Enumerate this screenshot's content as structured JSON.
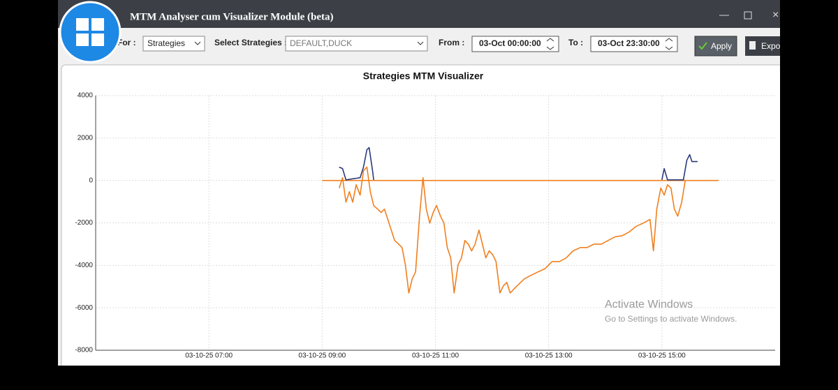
{
  "window": {
    "title": "MTM Analyser cum Visualizer Module (beta)"
  },
  "toolbar": {
    "for_label": "For :",
    "for_value": "Strategies",
    "select_label": "Select Strategies :",
    "select_value": "DEFAULT,DUCK",
    "from_label": "From :",
    "from_value": "03-Oct 00:00:00",
    "to_label": "To :",
    "to_value": "03-Oct 23:30:00",
    "apply": "Apply",
    "export": "Export"
  },
  "watermark": {
    "line1": "Activate Windows",
    "line2": "Go to Settings to activate Windows."
  },
  "chart_data": {
    "type": "line",
    "title": "Strategies MTM Visualizer",
    "xlim": [
      5,
      17
    ],
    "xticks": [
      {
        "value": 7,
        "label": "03-10-25 07:00"
      },
      {
        "value": 9,
        "label": "03-10-25 09:00"
      },
      {
        "value": 11,
        "label": "03-10-25 11:00"
      },
      {
        "value": 13,
        "label": "03-10-25 13:00"
      },
      {
        "value": 15,
        "label": "03-10-25 15:00"
      }
    ],
    "ylim": [
      -8000,
      4000
    ],
    "yticks": [
      -8000,
      -6000,
      -4000,
      -2000,
      0,
      2000,
      4000
    ],
    "grid": true,
    "series": [
      {
        "color": "#f07f1e",
        "x": [
          9,
          16
        ],
        "values": [
          0,
          0
        ]
      },
      {
        "color": "#f07f1e",
        "x": [
          9.3,
          9.36,
          9.42,
          9.48,
          9.54,
          9.6,
          9.67,
          9.73,
          9.79,
          9.85,
          9.91,
          9.98,
          10.04,
          10.1,
          10.16,
          10.22,
          10.28,
          10.35,
          10.41,
          10.47,
          10.53,
          10.59,
          10.65,
          10.72,
          10.78,
          10.84,
          10.9,
          10.96,
          11.02,
          11.09,
          11.15,
          11.21,
          11.27,
          11.33,
          11.4,
          11.46,
          11.52,
          11.58,
          11.64,
          11.7,
          11.77,
          11.83,
          11.89,
          11.95,
          12.01,
          12.07,
          12.14,
          12.2,
          12.26,
          12.32,
          12.44,
          12.57,
          12.69,
          12.81,
          12.94,
          13.06,
          13.19,
          13.31,
          13.43,
          13.56,
          13.68,
          13.8,
          13.93,
          14.05,
          14.17,
          14.3,
          14.42,
          14.54,
          14.67,
          14.79,
          14.85,
          14.91,
          14.98,
          15.04,
          15.1,
          15.16,
          15.22,
          15.28,
          15.35,
          15.41
        ],
        "values": [
          -360,
          130,
          -1020,
          -530,
          -1020,
          -200,
          -690,
          460,
          630,
          -530,
          -1180,
          -1350,
          -1510,
          -1350,
          -1840,
          -2340,
          -2830,
          -3000,
          -3160,
          -3980,
          -5300,
          -4640,
          -4310,
          -1680,
          130,
          -1350,
          -2010,
          -1510,
          -1180,
          -1680,
          -2010,
          -3160,
          -3650,
          -5300,
          -3980,
          -3650,
          -2830,
          -3000,
          -3320,
          -3000,
          -2340,
          -3000,
          -3650,
          -3320,
          -3490,
          -3820,
          -5300,
          -4970,
          -4800,
          -5300,
          -4970,
          -4640,
          -4470,
          -4310,
          -4150,
          -3820,
          -3820,
          -3650,
          -3320,
          -3160,
          -3160,
          -3000,
          -3000,
          -2830,
          -2660,
          -2600,
          -2430,
          -2170,
          -2010,
          -1840,
          -3320,
          -1350,
          -360,
          -690,
          -200,
          -360,
          -1350,
          -1680,
          -1020,
          -30
        ]
      },
      {
        "color": "#2b3a7a",
        "x": [
          9.3,
          9.36,
          9.42,
          9.67,
          9.73,
          9.79,
          9.83,
          9.89,
          9.91,
          12.5,
          15.0,
          15.04,
          15.1,
          15.38,
          15.44,
          15.49,
          15.53,
          15.63
        ],
        "values": [
          630,
          560,
          30,
          130,
          630,
          1450,
          1550,
          460,
          30,
          null,
          30,
          560,
          30,
          30,
          950,
          1220,
          890,
          890
        ]
      }
    ]
  }
}
